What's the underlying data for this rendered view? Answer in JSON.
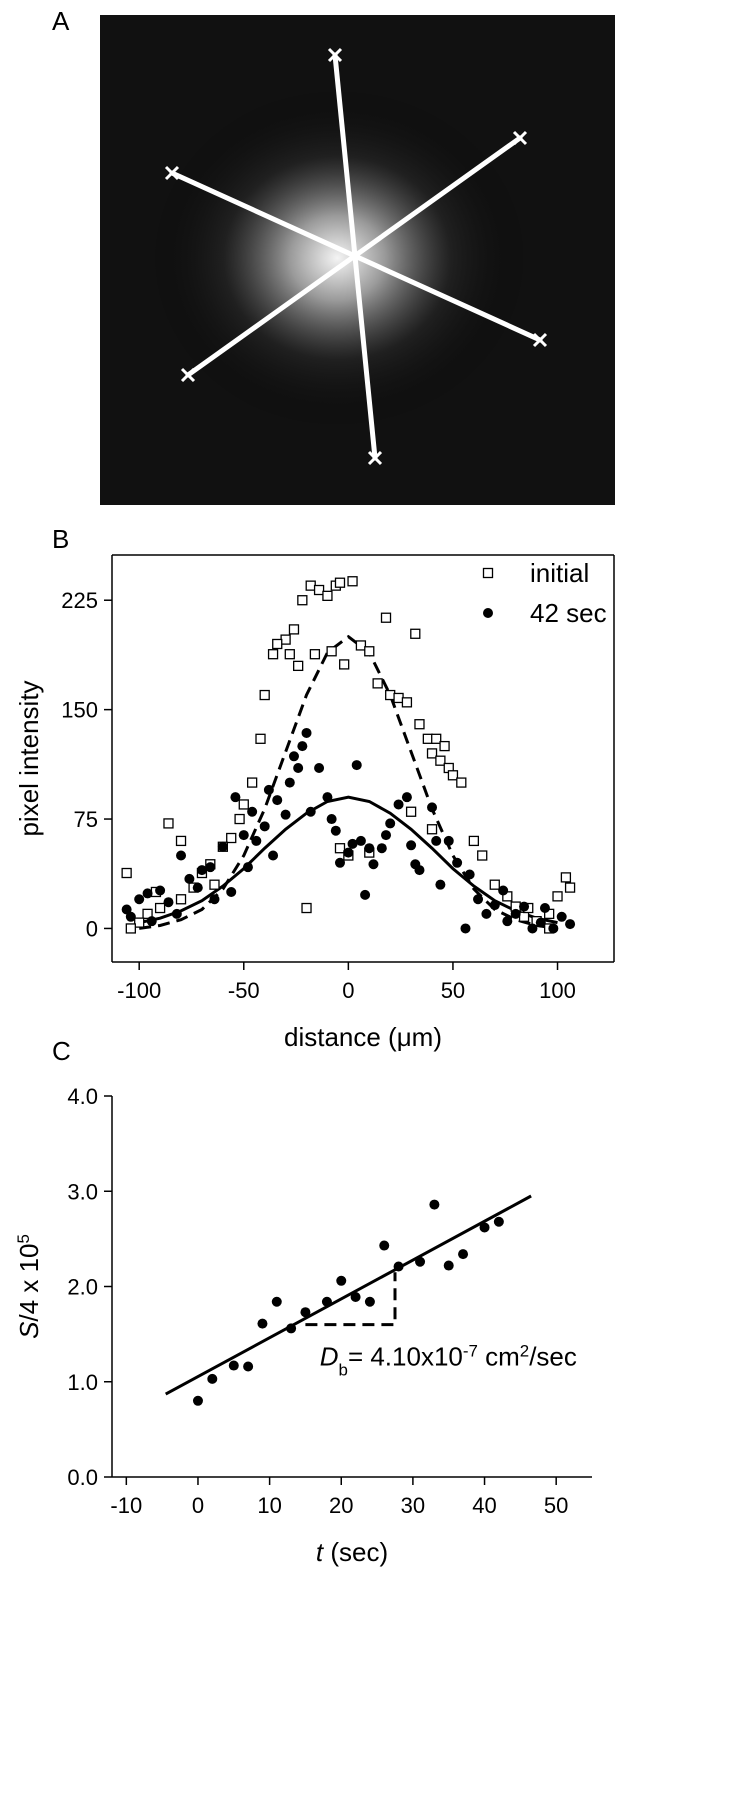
{
  "image_panel": {
    "label": "A"
  },
  "chart_data": [
    {
      "type": "scatter",
      "label": "B",
      "frame": true,
      "xlabel": [
        {
          "text": "distance (μm)",
          "style": "normal"
        }
      ],
      "ylabel": [
        {
          "text": "pixel intensity",
          "style": "normal"
        }
      ],
      "xlim": [
        -113,
        127
      ],
      "ylim": [
        -23,
        256
      ],
      "xticks": [
        -100,
        -50,
        0,
        50,
        100
      ],
      "yticks": [
        0,
        75,
        150,
        225
      ],
      "legend": "upper right",
      "series": [
        {
          "name": "initial",
          "marker": "square",
          "color": "#000000",
          "x": [
            -18,
            -14,
            -10,
            -6,
            -4,
            2,
            -22,
            -26,
            -30,
            -34,
            -36,
            -28,
            -24,
            -16,
            -8,
            -2,
            6,
            10,
            14,
            18,
            20,
            24,
            28,
            32,
            34,
            38,
            40,
            42,
            44,
            46,
            48,
            50,
            54,
            -40,
            -42,
            -46,
            -50,
            -52,
            -56,
            -60,
            -66,
            -70,
            -74,
            -80,
            -86,
            -90,
            -96,
            -100,
            -104,
            -106,
            -20,
            -4,
            0,
            10,
            30,
            40,
            60,
            64,
            70,
            76,
            80,
            84,
            90,
            96,
            100,
            104,
            106,
            96,
            86,
            -80,
            -64,
            -92
          ],
          "values": [
            235,
            232,
            228,
            235,
            237,
            238,
            225,
            205,
            198,
            195,
            188,
            188,
            180,
            188,
            190,
            181,
            194,
            190,
            168,
            213,
            160,
            158,
            155,
            202,
            140,
            130,
            120,
            130,
            115,
            125,
            110,
            105,
            100,
            160,
            130,
            100,
            85,
            75,
            62,
            56,
            44,
            38,
            28,
            20,
            72,
            14,
            10,
            4,
            0,
            38,
            14,
            55,
            50,
            52,
            80,
            68,
            60,
            50,
            30,
            22,
            15,
            8,
            5,
            10,
            22,
            35,
            28,
            0,
            14,
            60,
            30,
            25
          ]
        },
        {
          "name": "42 sec",
          "marker": "circle",
          "color": "#000000",
          "x": [
            -106,
            -104,
            -100,
            -96,
            -94,
            -90,
            -86,
            -82,
            -80,
            -76,
            -72,
            -70,
            -66,
            -64,
            -60,
            -56,
            -54,
            -50,
            -48,
            -46,
            -44,
            -40,
            -38,
            -36,
            -34,
            -30,
            -28,
            -26,
            -24,
            -22,
            -20,
            -18,
            -14,
            -10,
            -8,
            -6,
            -4,
            0,
            2,
            4,
            6,
            8,
            10,
            12,
            16,
            18,
            20,
            24,
            28,
            30,
            32,
            34,
            40,
            42,
            44,
            48,
            52,
            56,
            58,
            62,
            66,
            70,
            74,
            76,
            80,
            84,
            88,
            92,
            94,
            98,
            102,
            106
          ],
          "values": [
            13,
            8,
            20,
            24,
            5,
            26,
            18,
            10,
            50,
            34,
            28,
            40,
            42,
            20,
            56,
            25,
            90,
            64,
            42,
            80,
            60,
            70,
            95,
            50,
            88,
            78,
            100,
            118,
            110,
            125,
            134,
            80,
            110,
            90,
            75,
            67,
            45,
            52,
            58,
            112,
            60,
            23,
            55,
            44,
            55,
            64,
            72,
            85,
            90,
            57,
            44,
            40,
            83,
            60,
            30,
            60,
            45,
            0,
            37,
            20,
            10,
            16,
            26,
            5,
            10,
            15,
            0,
            4,
            14,
            0,
            8,
            3
          ]
        }
      ],
      "fits": [
        {
          "dash": true,
          "x": [
            -100,
            -90,
            -80,
            -70,
            -60,
            -50,
            -40,
            -30,
            -20,
            -10,
            0,
            10,
            20,
            30,
            40,
            50,
            60,
            70,
            80,
            90,
            100
          ],
          "values": [
            0,
            2,
            6,
            13,
            27,
            50,
            82,
            121,
            160,
            189,
            200,
            189,
            160,
            121,
            82,
            50,
            27,
            13,
            6,
            2,
            0
          ]
        },
        {
          "dash": false,
          "x": [
            -100,
            -90,
            -80,
            -70,
            -60,
            -50,
            -40,
            -30,
            -20,
            -10,
            0,
            10,
            20,
            30,
            40,
            50,
            60,
            70,
            80,
            90,
            100
          ],
          "values": [
            4,
            7,
            12,
            19,
            29,
            41,
            55,
            68,
            79,
            87,
            90,
            87,
            79,
            68,
            55,
            41,
            29,
            19,
            12,
            7,
            4
          ]
        }
      ]
    },
    {
      "type": "scatter",
      "label": "C",
      "frame": false,
      "xlabel": [
        {
          "text": "t",
          "style": "italic"
        },
        {
          "text": " (sec)",
          "style": "normal"
        }
      ],
      "ylabel": [
        {
          "text": "S",
          "style": "italic"
        },
        {
          "text": "/4 x 10",
          "style": "normal"
        },
        {
          "text": "5",
          "style": "sup"
        }
      ],
      "xlim": [
        -12,
        55
      ],
      "ylim": [
        0,
        4
      ],
      "xticks": [
        -10,
        0,
        10,
        20,
        30,
        40,
        50
      ],
      "yticks": [
        {
          "value": 0,
          "label": "0.0"
        },
        {
          "value": 1,
          "label": "1.0"
        },
        {
          "value": 2,
          "label": "2.0"
        },
        {
          "value": 3,
          "label": "3.0"
        },
        {
          "value": 4,
          "label": "4.0"
        }
      ],
      "series": [
        {
          "marker": "circle",
          "color": "#000000",
          "x": [
            0,
            2,
            5,
            7,
            9,
            11,
            13,
            15,
            18,
            20,
            22,
            24,
            26,
            28,
            31,
            33,
            35,
            37,
            40,
            42
          ],
          "values": [
            0.8,
            1.03,
            1.17,
            1.16,
            1.61,
            1.84,
            1.56,
            1.73,
            1.84,
            2.06,
            1.89,
            1.84,
            2.43,
            2.21,
            2.26,
            2.86,
            2.22,
            2.34,
            2.62,
            2.68
          ]
        }
      ],
      "fits": [
        {
          "dash": false,
          "x": [
            -4.5,
            46.5
          ],
          "values": [
            0.87,
            2.95
          ]
        },
        {
          "dash": true,
          "x": [
            15,
            27.5,
            27.5
          ],
          "values": [
            1.6,
            1.6,
            2.15
          ]
        }
      ],
      "annotation": {
        "x": 17,
        "y": 1.17,
        "parts": [
          {
            "text": "D",
            "style": "italic"
          },
          {
            "text": "b",
            "style": "sub"
          },
          {
            "text": "= 4.10x10",
            "style": "normal"
          },
          {
            "text": "-7",
            "style": "sup"
          },
          {
            "text": " cm",
            "style": "normal"
          },
          {
            "text": "2",
            "style": "sup"
          },
          {
            "text": "/sec",
            "style": "normal"
          }
        ]
      }
    }
  ]
}
